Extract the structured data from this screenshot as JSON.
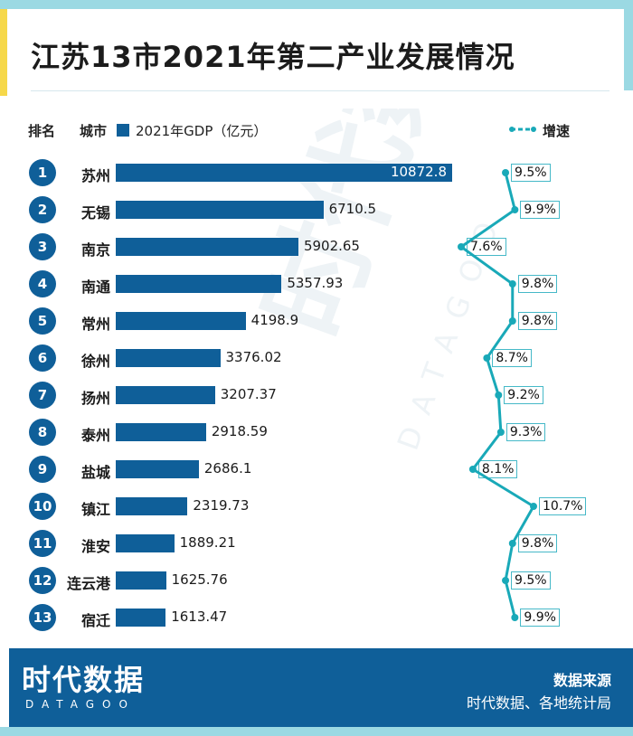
{
  "title": "江苏13市2021年第二产业发展情况",
  "header": {
    "rank_label": "排名",
    "city_label": "城市",
    "bar_legend": "2021年GDP（亿元）",
    "line_legend": "增速"
  },
  "colors": {
    "bar": "#0f5f99",
    "line": "#19a9b8",
    "accent_top": "#9bd9e3",
    "accent_yellow": "#f6d84a",
    "footer_bg": "#0f5f99"
  },
  "chart_data": {
    "type": "bar",
    "title": "江苏13市2021年第二产业发展情况",
    "categories": [
      "苏州",
      "无锡",
      "南京",
      "南通",
      "常州",
      "徐州",
      "扬州",
      "泰州",
      "盐城",
      "镇江",
      "淮安",
      "连云港",
      "宿迁"
    ],
    "ranks": [
      "1",
      "2",
      "3",
      "4",
      "5",
      "6",
      "7",
      "8",
      "9",
      "10",
      "11",
      "12",
      "13"
    ],
    "series": [
      {
        "name": "2021年GDP（亿元）",
        "values": [
          10872.8,
          6710.5,
          5902.65,
          5357.93,
          4198.9,
          3376.02,
          3207.37,
          2918.59,
          2686.1,
          2319.73,
          1889.21,
          1625.76,
          1613.47
        ],
        "labels": [
          "10872.8",
          "6710.5",
          "5902.65",
          "5357.93",
          "4198.9",
          "3376.02",
          "3207.37",
          "2918.59",
          "2686.1",
          "2319.73",
          "1889.21",
          "1625.76",
          "1613.47"
        ]
      },
      {
        "name": "增速",
        "values": [
          9.5,
          9.9,
          7.6,
          9.8,
          9.8,
          8.7,
          9.2,
          9.3,
          8.1,
          10.7,
          9.8,
          9.5,
          9.9
        ],
        "labels": [
          "9.5%",
          "9.9%",
          "7.6%",
          "9.8%",
          "9.8%",
          "8.7%",
          "9.2%",
          "9.3%",
          "8.1%",
          "10.7%",
          "9.8%",
          "9.5%",
          "9.9%"
        ]
      }
    ],
    "legend": "top",
    "grid": false
  },
  "watermark": {
    "text_main": "时代数据",
    "text_sub": "DATAGOO"
  },
  "footer": {
    "logo": "时代数据",
    "logo_sub": "DATAGOO",
    "source_title": "数据来源",
    "source_text": "时代数据、各地统计局"
  }
}
